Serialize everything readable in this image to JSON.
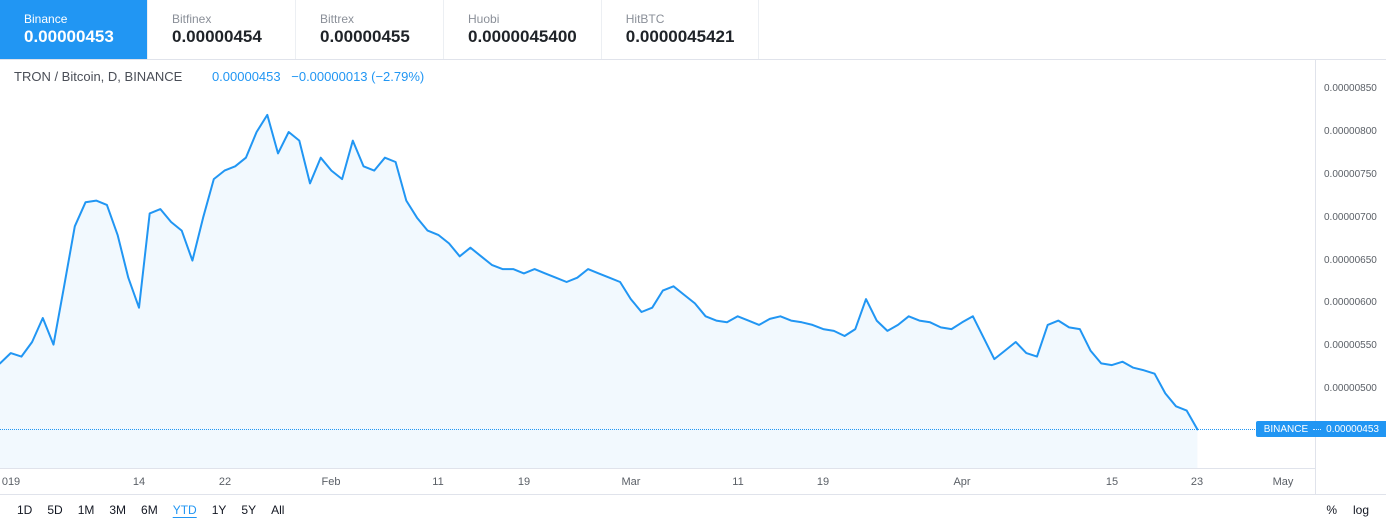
{
  "exchange_tabs": [
    {
      "name": "Binance",
      "price": "0.00000453",
      "active": true
    },
    {
      "name": "Bitfinex",
      "price": "0.00000454",
      "active": false
    },
    {
      "name": "Bittrex",
      "price": "0.00000455",
      "active": false
    },
    {
      "name": "Huobi",
      "price": "0.0000045400",
      "active": false
    },
    {
      "name": "HitBTC",
      "price": "0.0000045421",
      "active": false
    }
  ],
  "legend": {
    "symbol": "TRON / Bitcoin, D, BINANCE",
    "price": "0.00000453",
    "change": "−0.00000013 (−2.79%)"
  },
  "price_label": {
    "exchange": "BINANCE",
    "value": "0.00000453"
  },
  "toolbar": {
    "ranges": [
      {
        "label": "1D",
        "active": false
      },
      {
        "label": "5D",
        "active": false
      },
      {
        "label": "1M",
        "active": false
      },
      {
        "label": "3M",
        "active": false
      },
      {
        "label": "6M",
        "active": false
      },
      {
        "label": "YTD",
        "active": true
      },
      {
        "label": "1Y",
        "active": false
      },
      {
        "label": "5Y",
        "active": false
      },
      {
        "label": "All",
        "active": false
      }
    ],
    "scale_buttons": [
      "%",
      "log"
    ]
  },
  "chart_data": {
    "type": "area",
    "title": "TRON / Bitcoin, D, BINANCE",
    "series_name": "BINANCE",
    "line_color": "#2196f3",
    "fill_color": "rgba(33,150,243,0.06)",
    "current_price": 4.53e-06,
    "ylim": [
      4.08e-06,
      8.84e-06
    ],
    "x_domain_max": 123,
    "x_ticks": [
      {
        "d": 1,
        "label": "019"
      },
      {
        "d": 13,
        "label": "14"
      },
      {
        "d": 21,
        "label": "22"
      },
      {
        "d": 31,
        "label": "Feb"
      },
      {
        "d": 41,
        "label": "11"
      },
      {
        "d": 49,
        "label": "19"
      },
      {
        "d": 59,
        "label": "Mar"
      },
      {
        "d": 69,
        "label": "11"
      },
      {
        "d": 77,
        "label": "19"
      },
      {
        "d": 90,
        "label": "Apr"
      },
      {
        "d": 104,
        "label": "15"
      },
      {
        "d": 112,
        "label": "23"
      },
      {
        "d": 120,
        "label": "May"
      }
    ],
    "y_ticks": [
      {
        "value": 8.5e-06,
        "label": "0.00000850"
      },
      {
        "value": 8e-06,
        "label": "0.00000800"
      },
      {
        "value": 7.5e-06,
        "label": "0.00000750"
      },
      {
        "value": 7e-06,
        "label": "0.00000700"
      },
      {
        "value": 6.5e-06,
        "label": "0.00000650"
      },
      {
        "value": 6e-06,
        "label": "0.00000600"
      },
      {
        "value": 5.5e-06,
        "label": "0.00000550"
      },
      {
        "value": 5e-06,
        "label": "0.00000500"
      }
    ],
    "values": [
      5.3e-06,
      5.42e-06,
      5.38e-06,
      5.55e-06,
      5.83e-06,
      5.52e-06,
      6.2e-06,
      6.9e-06,
      7.18e-06,
      7.2e-06,
      7.15e-06,
      6.8e-06,
      6.3e-06,
      5.95e-06,
      7.05e-06,
      7.1e-06,
      6.95e-06,
      6.85e-06,
      6.5e-06,
      7e-06,
      7.45e-06,
      7.55e-06,
      7.6e-06,
      7.7e-06,
      8e-06,
      8.2e-06,
      7.75e-06,
      8e-06,
      7.9e-06,
      7.4e-06,
      7.7e-06,
      7.55e-06,
      7.45e-06,
      7.9e-06,
      7.6e-06,
      7.55e-06,
      7.7e-06,
      7.65e-06,
      7.2e-06,
      7e-06,
      6.85e-06,
      6.8e-06,
      6.7e-06,
      6.55e-06,
      6.65e-06,
      6.55e-06,
      6.45e-06,
      6.4e-06,
      6.4e-06,
      6.35e-06,
      6.4e-06,
      6.35e-06,
      6.3e-06,
      6.25e-06,
      6.3e-06,
      6.4e-06,
      6.35e-06,
      6.3e-06,
      6.25e-06,
      6.05e-06,
      5.9e-06,
      5.95e-06,
      6.15e-06,
      6.2e-06,
      6.1e-06,
      6e-06,
      5.85e-06,
      5.8e-06,
      5.78e-06,
      5.85e-06,
      5.8e-06,
      5.75e-06,
      5.82e-06,
      5.85e-06,
      5.8e-06,
      5.78e-06,
      5.75e-06,
      5.7e-06,
      5.68e-06,
      5.62e-06,
      5.7e-06,
      6.05e-06,
      5.8e-06,
      5.68e-06,
      5.75e-06,
      5.85e-06,
      5.8e-06,
      5.78e-06,
      5.72e-06,
      5.7e-06,
      5.78e-06,
      5.85e-06,
      5.6e-06,
      5.35e-06,
      5.45e-06,
      5.55e-06,
      5.42e-06,
      5.38e-06,
      5.75e-06,
      5.8e-06,
      5.72e-06,
      5.7e-06,
      5.45e-06,
      5.3e-06,
      5.28e-06,
      5.32e-06,
      5.25e-06,
      5.22e-06,
      5.18e-06,
      4.95e-06,
      4.8e-06,
      4.75e-06,
      4.53e-06
    ]
  }
}
